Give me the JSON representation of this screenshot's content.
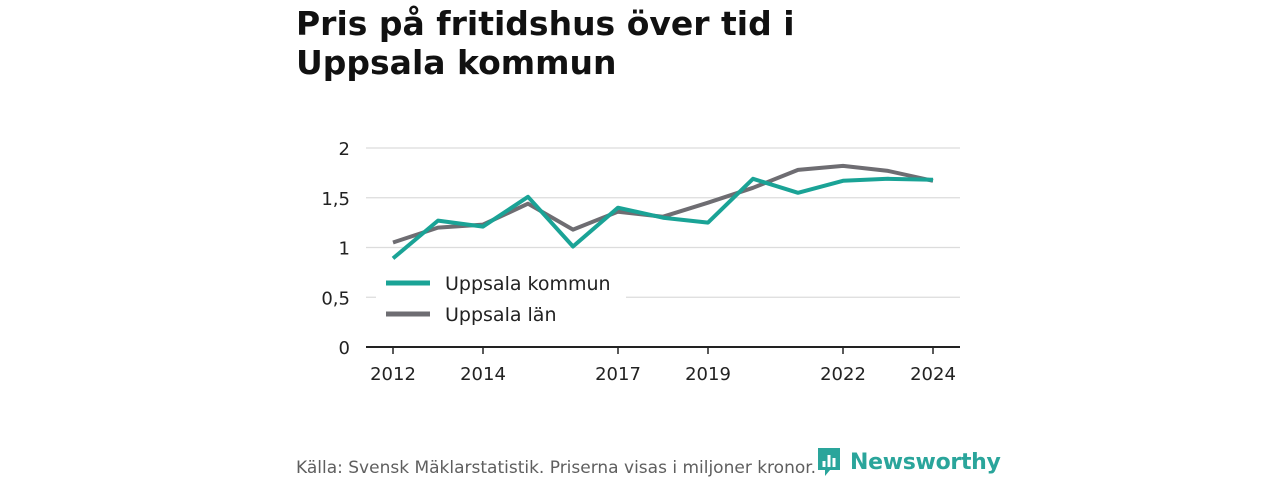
{
  "title": "Pris på fritidshus över tid i Uppsala kommun",
  "source": "Källa: Svensk Mäklarstatistik. Priserna visas i miljoner kronor.",
  "brand": {
    "name": "Newsworthy",
    "icon": "newsworthy-logo-icon",
    "color": "#2aa59b"
  },
  "chart_data": {
    "type": "line",
    "x": [
      2012,
      2013,
      2014,
      2015,
      2016,
      2017,
      2018,
      2019,
      2020,
      2021,
      2022,
      2023,
      2024
    ],
    "x_tick_values": [
      2012,
      2014,
      2017,
      2019,
      2022,
      2024
    ],
    "x_tick_labels": [
      "2012",
      "2014",
      "2017",
      "2019",
      "2022",
      "2024"
    ],
    "y_tick_values": [
      0,
      0.5,
      1,
      1.5,
      2
    ],
    "y_tick_labels": [
      "0",
      "0,5",
      "1",
      "1,5",
      "2"
    ],
    "ylim": [
      0,
      2
    ],
    "xlim": [
      2011.4,
      2024.6
    ],
    "grid": true,
    "legend_position": "bottom-left",
    "series": [
      {
        "name": "Uppsala kommun",
        "color": "#1aa396",
        "values": [
          0.89,
          1.27,
          1.21,
          1.51,
          1.01,
          1.4,
          1.3,
          1.25,
          1.69,
          1.55,
          1.67,
          1.69,
          1.68
        ]
      },
      {
        "name": "Uppsala län",
        "color": "#6e6d72",
        "values": [
          1.05,
          1.2,
          1.23,
          1.44,
          1.18,
          1.36,
          1.31,
          1.45,
          1.6,
          1.78,
          1.82,
          1.77,
          1.67
        ]
      }
    ]
  }
}
